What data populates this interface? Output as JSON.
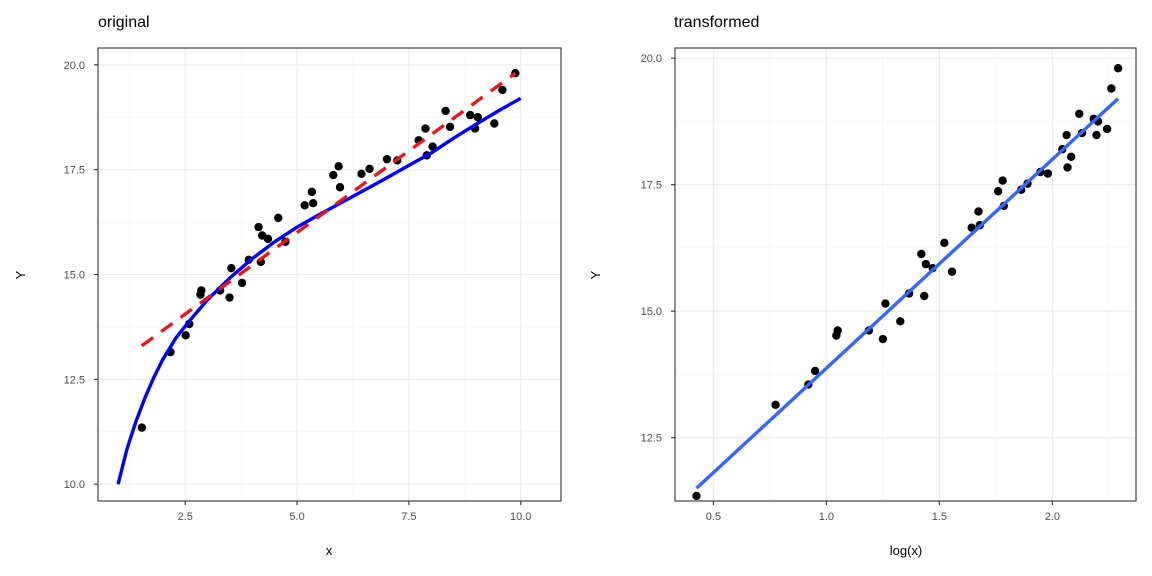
{
  "chart_data": [
    {
      "type": "scatter",
      "title": "original",
      "xlabel": "x",
      "ylabel": "Y",
      "xlim": [
        0.55,
        10.9
      ],
      "ylim": [
        9.6,
        20.4
      ],
      "xticks": [
        "2.5",
        "5.0",
        "7.5",
        "10.0"
      ],
      "yticks": [
        "10.0",
        "12.5",
        "15.0",
        "17.5",
        "20.0"
      ],
      "grid": true,
      "points": [
        [
          1.53,
          11.35
        ],
        [
          2.17,
          13.15
        ],
        [
          2.51,
          13.55
        ],
        [
          2.59,
          13.82
        ],
        [
          2.84,
          14.52
        ],
        [
          2.86,
          14.62
        ],
        [
          3.28,
          14.62
        ],
        [
          3.49,
          14.45
        ],
        [
          3.53,
          15.15
        ],
        [
          3.77,
          14.8
        ],
        [
          3.92,
          15.35
        ],
        [
          4.14,
          16.13
        ],
        [
          4.19,
          15.3
        ],
        [
          4.22,
          15.93
        ],
        [
          4.35,
          15.85
        ],
        [
          4.58,
          16.35
        ],
        [
          4.74,
          15.78
        ],
        [
          5.17,
          16.65
        ],
        [
          5.33,
          16.97
        ],
        [
          5.36,
          16.7
        ],
        [
          5.81,
          17.37
        ],
        [
          5.93,
          17.58
        ],
        [
          5.96,
          17.08
        ],
        [
          6.44,
          17.4
        ],
        [
          6.62,
          17.52
        ],
        [
          7.01,
          17.75
        ],
        [
          7.24,
          17.72
        ],
        [
          7.72,
          18.2
        ],
        [
          7.87,
          18.48
        ],
        [
          7.9,
          17.84
        ],
        [
          8.03,
          18.05
        ],
        [
          8.32,
          18.9
        ],
        [
          8.42,
          18.52
        ],
        [
          8.87,
          18.8
        ],
        [
          8.98,
          18.48
        ],
        [
          9.04,
          18.75
        ],
        [
          9.41,
          18.6
        ],
        [
          9.59,
          19.4
        ],
        [
          9.88,
          19.8
        ]
      ],
      "series": [
        {
          "name": "",
          "color": "#0000ff",
          "style": "solid",
          "x": [
            1.0,
            1.2,
            1.4,
            1.6,
            1.8,
            2.0,
            2.3,
            2.6,
            3.0,
            3.5,
            4.0,
            4.5,
            5.0,
            5.5,
            6.0,
            6.5,
            7.0,
            7.5,
            8.0,
            8.5,
            9.0,
            9.5,
            10.0
          ],
          "y": [
            10.0,
            10.85,
            11.5,
            12.06,
            12.55,
            12.98,
            13.5,
            13.9,
            14.4,
            14.92,
            15.38,
            15.78,
            16.13,
            16.43,
            16.72,
            17.01,
            17.3,
            17.6,
            17.9,
            18.25,
            18.58,
            18.9,
            19.2
          ]
        },
        {
          "name": "",
          "color": "#e31a1c",
          "style": "dashed",
          "x": [
            1.53,
            9.88
          ],
          "y": [
            13.3,
            19.8
          ]
        }
      ]
    },
    {
      "type": "scatter",
      "title": "transformed",
      "xlabel": "log(x)",
      "ylabel": "Y",
      "xlim": [
        0.33,
        2.37
      ],
      "ylim": [
        11.25,
        20.2
      ],
      "xticks": [
        "0.5",
        "1.0",
        "1.5",
        "2.0"
      ],
      "yticks": [
        "12.5",
        "15.0",
        "17.5",
        "20.0"
      ],
      "grid": true,
      "points": [
        [
          0.425,
          11.35
        ],
        [
          0.775,
          13.15
        ],
        [
          0.92,
          13.55
        ],
        [
          0.95,
          13.82
        ],
        [
          1.044,
          14.52
        ],
        [
          1.05,
          14.62
        ],
        [
          1.188,
          14.62
        ],
        [
          1.25,
          14.45
        ],
        [
          1.261,
          15.15
        ],
        [
          1.327,
          14.8
        ],
        [
          1.366,
          15.35
        ],
        [
          1.42,
          16.13
        ],
        [
          1.433,
          15.3
        ],
        [
          1.44,
          15.93
        ],
        [
          1.47,
          15.85
        ],
        [
          1.522,
          16.35
        ],
        [
          1.556,
          15.78
        ],
        [
          1.643,
          16.65
        ],
        [
          1.673,
          16.97
        ],
        [
          1.679,
          16.7
        ],
        [
          1.76,
          17.37
        ],
        [
          1.78,
          17.58
        ],
        [
          1.785,
          17.08
        ],
        [
          1.862,
          17.4
        ],
        [
          1.89,
          17.52
        ],
        [
          1.947,
          17.75
        ],
        [
          1.98,
          17.72
        ],
        [
          2.044,
          18.2
        ],
        [
          2.063,
          18.48
        ],
        [
          2.067,
          17.84
        ],
        [
          2.083,
          18.05
        ],
        [
          2.119,
          18.9
        ],
        [
          2.131,
          18.52
        ],
        [
          2.183,
          18.8
        ],
        [
          2.195,
          18.48
        ],
        [
          2.202,
          18.75
        ],
        [
          2.242,
          18.6
        ],
        [
          2.261,
          19.4
        ],
        [
          2.291,
          19.8
        ]
      ],
      "series": [
        {
          "name": "",
          "color": "#3366ff",
          "style": "solid",
          "x": [
            0.425,
            2.291
          ],
          "y": [
            11.5,
            19.2
          ]
        }
      ]
    }
  ]
}
